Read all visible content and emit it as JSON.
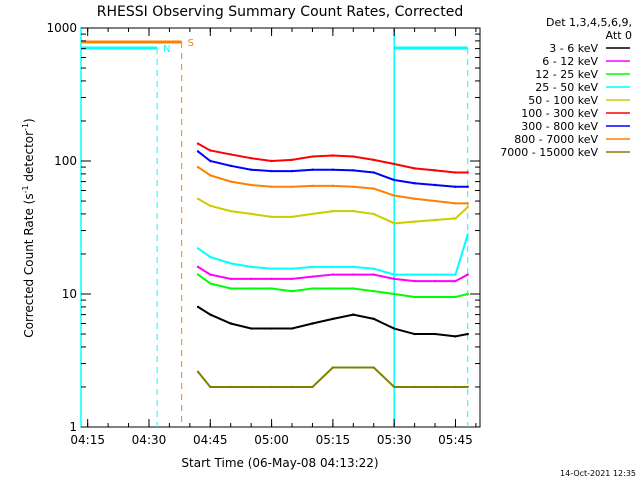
{
  "chart_data": {
    "type": "line",
    "title": "RHESSI Observing Summary Count Rates, Corrected",
    "ylabel_main": "Corrected Count Rate (s",
    "ylabel_sup1": "-1",
    "ylabel_mid": " detector",
    "ylabel_sup2": "-1",
    "ylabel_end": ")",
    "xlabel": "Start Time (06-May-08 04:13:22)",
    "footer_date": "14-Oct-2021 12:35",
    "yscale": "log",
    "ylim": [
      1,
      1000
    ],
    "xlim": [
      "04:13:22",
      "05:51:00"
    ],
    "x_ticks": [
      "04:15",
      "04:30",
      "04:45",
      "05:00",
      "05:15",
      "05:30",
      "05:45"
    ],
    "y_ticks": [
      "1",
      "10",
      "100",
      "1000"
    ],
    "legend_header": [
      "Det 1,3,4,5,6,9,",
      "Att 0"
    ],
    "legend_position": "top-right, outside plot",
    "series": [
      {
        "name": "3 - 6 keV",
        "color": "#000000",
        "x": [
          "04:42",
          "04:45",
          "04:50",
          "04:55",
          "05:00",
          "05:05",
          "05:10",
          "05:15",
          "05:20",
          "05:25",
          "05:30",
          "05:35",
          "05:40",
          "05:45",
          "05:48"
        ],
        "y": [
          8,
          7,
          6,
          5.5,
          5.5,
          5.5,
          6,
          6.5,
          7,
          6.5,
          5.5,
          5,
          5,
          4.8,
          5
        ]
      },
      {
        "name": "6 - 12 keV",
        "color": "#ff00ff",
        "x": [
          "04:42",
          "04:45",
          "04:50",
          "04:55",
          "05:00",
          "05:05",
          "05:10",
          "05:15",
          "05:20",
          "05:25",
          "05:30",
          "05:35",
          "05:40",
          "05:45",
          "05:48"
        ],
        "y": [
          16,
          14,
          13,
          13,
          13,
          13,
          13.5,
          14,
          14,
          14,
          13,
          12.5,
          12.5,
          12.5,
          14
        ]
      },
      {
        "name": "12 - 25 keV",
        "color": "#00ff00",
        "x": [
          "04:42",
          "04:45",
          "04:50",
          "04:55",
          "05:00",
          "05:05",
          "05:10",
          "05:15",
          "05:20",
          "05:25",
          "05:30",
          "05:35",
          "05:40",
          "05:45",
          "05:48"
        ],
        "y": [
          14,
          12,
          11,
          11,
          11,
          10.5,
          11,
          11,
          11,
          10.5,
          10,
          9.5,
          9.5,
          9.5,
          10
        ]
      },
      {
        "name": "25 - 50 keV",
        "color": "#00ffff",
        "x": [
          "04:42",
          "04:45",
          "04:50",
          "04:55",
          "05:00",
          "05:05",
          "05:10",
          "05:15",
          "05:20",
          "05:25",
          "05:30",
          "05:35",
          "05:40",
          "05:45",
          "05:48"
        ],
        "y": [
          22,
          19,
          17,
          16,
          15.5,
          15.5,
          16,
          16,
          16,
          15.5,
          14,
          14,
          14,
          14,
          28
        ]
      },
      {
        "name": "50 - 100 keV",
        "color": "#cccc00",
        "x": [
          "04:42",
          "04:45",
          "04:50",
          "04:55",
          "05:00",
          "05:05",
          "05:10",
          "05:15",
          "05:20",
          "05:25",
          "05:30",
          "05:35",
          "05:40",
          "05:45",
          "05:48"
        ],
        "y": [
          52,
          46,
          42,
          40,
          38,
          38,
          40,
          42,
          42,
          40,
          34,
          35,
          36,
          37,
          45
        ]
      },
      {
        "name": "100 - 300 keV",
        "color": "#ff0000",
        "x": [
          "04:42",
          "04:45",
          "04:50",
          "04:55",
          "05:00",
          "05:05",
          "05:10",
          "05:15",
          "05:20",
          "05:25",
          "05:30",
          "05:35",
          "05:40",
          "05:45",
          "05:48"
        ],
        "y": [
          135,
          120,
          112,
          105,
          100,
          102,
          108,
          110,
          108,
          102,
          95,
          88,
          85,
          82,
          82
        ]
      },
      {
        "name": "300 - 800 keV",
        "color": "#0000ff",
        "x": [
          "04:42",
          "04:45",
          "04:50",
          "04:55",
          "05:00",
          "05:05",
          "05:10",
          "05:15",
          "05:20",
          "05:25",
          "05:30",
          "05:35",
          "05:40",
          "05:45",
          "05:48"
        ],
        "y": [
          118,
          100,
          92,
          86,
          84,
          84,
          86,
          86,
          85,
          82,
          72,
          68,
          66,
          64,
          64
        ]
      },
      {
        "name": "800 - 7000 keV",
        "color": "#ff8000",
        "x": [
          "04:42",
          "04:45",
          "04:50",
          "04:55",
          "05:00",
          "05:05",
          "05:10",
          "05:15",
          "05:20",
          "05:25",
          "05:30",
          "05:35",
          "05:40",
          "05:45",
          "05:48"
        ],
        "y": [
          90,
          78,
          70,
          66,
          64,
          64,
          65,
          65,
          64,
          62,
          55,
          52,
          50,
          48,
          48
        ]
      },
      {
        "name": "7000 - 15000 keV",
        "color": "#808000",
        "x": [
          "04:42",
          "04:45",
          "04:50",
          "04:55",
          "05:00",
          "05:05",
          "05:10",
          "05:15",
          "05:20",
          "05:25",
          "05:30",
          "05:35",
          "05:40",
          "05:45",
          "05:48"
        ],
        "y": [
          2.6,
          2,
          2,
          2,
          2,
          2,
          2,
          2.8,
          2.8,
          2.8,
          2,
          2,
          2,
          2,
          2
        ]
      }
    ],
    "flag_bars": [
      {
        "label": "S",
        "color": "#ff8000",
        "x_start": "04:13:22",
        "x_end": "04:38:00",
        "dashed_line_at": "04:38:00"
      },
      {
        "label": "N",
        "color": "#00ffff",
        "x_start": "04:13:22",
        "x_end": "04:32:00",
        "dashed_line_at": "04:32:00"
      },
      {
        "label": "",
        "color": "#00ffff",
        "x_start": "05:30:00",
        "x_end": "05:48:00",
        "dashed_line_at": "05:48:00"
      }
    ],
    "shaded_regions": [
      {
        "color": "#00ffff",
        "x_start": "04:13:22",
        "x_end": "04:13:22"
      },
      {
        "color": "#00ffff",
        "x_start": "05:30:00",
        "x_end": "05:30:00"
      }
    ]
  }
}
